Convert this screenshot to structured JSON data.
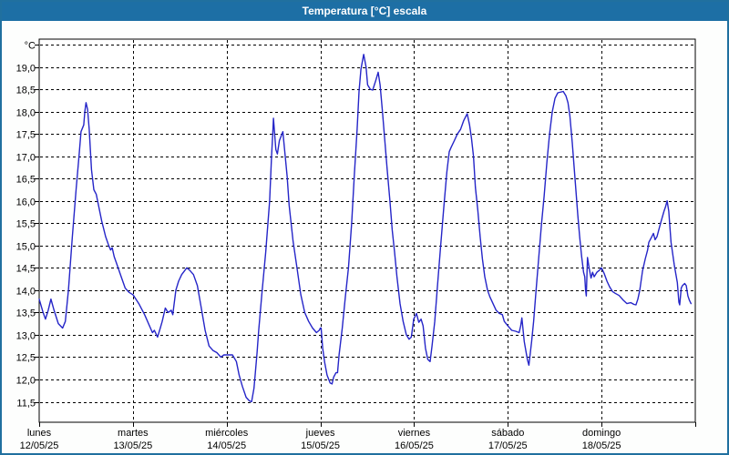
{
  "window": {
    "title": "Temperatura [°C] escala"
  },
  "colors": {
    "frame": "#20709f",
    "title_bar_bg": "#1d6fa5",
    "title_text": "#ffffff",
    "page_bg": "#fdfefd",
    "plot_bg": "#ffffff",
    "grid": "#000000",
    "line": "#2525c8"
  },
  "chart_data": {
    "type": "line",
    "title": "Temperatura [°C] escala",
    "xlabel": "",
    "ylabel": "°C",
    "grid": "dashed",
    "legend": "none",
    "x_range_hours": [
      0,
      168
    ],
    "y_axis": {
      "unit_label": "°C",
      "min_labeled": 11.5,
      "max_labeled": 19.0,
      "step": 0.5,
      "ticks": [
        {
          "value": 19.5,
          "label": "°C"
        },
        {
          "value": 19.0,
          "label": "19,0"
        },
        {
          "value": 18.5,
          "label": "18,5"
        },
        {
          "value": 18.0,
          "label": "18,0"
        },
        {
          "value": 17.5,
          "label": "17,5"
        },
        {
          "value": 17.0,
          "label": "17,0"
        },
        {
          "value": 16.5,
          "label": "16,5"
        },
        {
          "value": 16.0,
          "label": "16,0"
        },
        {
          "value": 15.5,
          "label": "15,5"
        },
        {
          "value": 15.0,
          "label": "15,0"
        },
        {
          "value": 14.5,
          "label": "14,5"
        },
        {
          "value": 14.0,
          "label": "14,0"
        },
        {
          "value": 13.5,
          "label": "13,5"
        },
        {
          "value": 13.0,
          "label": "13,0"
        },
        {
          "value": 12.5,
          "label": "12,5"
        },
        {
          "value": 12.0,
          "label": "12,0"
        },
        {
          "value": 11.5,
          "label": "11,5"
        }
      ]
    },
    "x_days": [
      {
        "name": "lunes",
        "date": "12/05/25"
      },
      {
        "name": "martes",
        "date": "13/05/25"
      },
      {
        "name": "miércoles",
        "date": "14/05/25"
      },
      {
        "name": "jueves",
        "date": "15/05/25"
      },
      {
        "name": "viernes",
        "date": "16/05/25"
      },
      {
        "name": "sábado",
        "date": "17/05/25"
      },
      {
        "name": "domingo",
        "date": "18/05/25"
      }
    ],
    "series": [
      {
        "name": "Temperatura",
        "color": "#2525c8",
        "points": [
          [
            0,
            13.8
          ],
          [
            1,
            13.5
          ],
          [
            1.6,
            13.35
          ],
          [
            2.3,
            13.55
          ],
          [
            3,
            13.8
          ],
          [
            3.8,
            13.55
          ],
          [
            4.9,
            13.25
          ],
          [
            6,
            13.15
          ],
          [
            6.7,
            13.3
          ],
          [
            7.5,
            14.0
          ],
          [
            8.5,
            15.2
          ],
          [
            9.5,
            16.3
          ],
          [
            10.2,
            17.0
          ],
          [
            10.7,
            17.55
          ],
          [
            11.4,
            17.7
          ],
          [
            11.7,
            18.0
          ],
          [
            12,
            18.2
          ],
          [
            12.4,
            18.05
          ],
          [
            12.8,
            17.6
          ],
          [
            13.4,
            16.7
          ],
          [
            14,
            16.25
          ],
          [
            14.6,
            16.15
          ],
          [
            15.2,
            15.9
          ],
          [
            16,
            15.55
          ],
          [
            17,
            15.2
          ],
          [
            17.8,
            15.0
          ],
          [
            18.3,
            14.9
          ],
          [
            18.7,
            14.95
          ],
          [
            19.2,
            14.75
          ],
          [
            19.8,
            14.6
          ],
          [
            21,
            14.3
          ],
          [
            22,
            14.05
          ],
          [
            23,
            13.95
          ],
          [
            24,
            13.9
          ],
          [
            25.5,
            13.7
          ],
          [
            27,
            13.45
          ],
          [
            28.5,
            13.15
          ],
          [
            29,
            13.05
          ],
          [
            29.5,
            13.1
          ],
          [
            30.3,
            12.95
          ],
          [
            31,
            13.15
          ],
          [
            31.5,
            13.3
          ],
          [
            32.3,
            13.6
          ],
          [
            33,
            13.5
          ],
          [
            33.8,
            13.55
          ],
          [
            34.2,
            13.45
          ],
          [
            35,
            14.0
          ],
          [
            35.7,
            14.2
          ],
          [
            36.5,
            14.35
          ],
          [
            37.8,
            14.5
          ],
          [
            38.5,
            14.45
          ],
          [
            39.5,
            14.35
          ],
          [
            40.5,
            14.1
          ],
          [
            41.5,
            13.6
          ],
          [
            42.5,
            13.1
          ],
          [
            43.5,
            12.75
          ],
          [
            44.5,
            12.65
          ],
          [
            45.5,
            12.6
          ],
          [
            46.5,
            12.5
          ],
          [
            47.3,
            12.55
          ],
          [
            48,
            12.55
          ],
          [
            49.5,
            12.55
          ],
          [
            50.5,
            12.4
          ],
          [
            51.2,
            12.1
          ],
          [
            52,
            11.85
          ],
          [
            53,
            11.6
          ],
          [
            53.8,
            11.52
          ],
          [
            54.4,
            11.5
          ],
          [
            55,
            11.8
          ],
          [
            55.3,
            12.1
          ],
          [
            55.8,
            12.6
          ],
          [
            56.2,
            13.1
          ],
          [
            57,
            13.9
          ],
          [
            58,
            14.85
          ],
          [
            59,
            16.0
          ],
          [
            59.5,
            17.0
          ],
          [
            59.8,
            17.5
          ],
          [
            60,
            17.85
          ],
          [
            60.6,
            17.15
          ],
          [
            61,
            17.05
          ],
          [
            61.5,
            17.35
          ],
          [
            62.4,
            17.55
          ],
          [
            63,
            17.0
          ],
          [
            63.5,
            16.55
          ],
          [
            64,
            15.9
          ],
          [
            65,
            15.1
          ],
          [
            66,
            14.5
          ],
          [
            67,
            13.9
          ],
          [
            68,
            13.5
          ],
          [
            69,
            13.3
          ],
          [
            70,
            13.15
          ],
          [
            71,
            13.05
          ],
          [
            71.7,
            13.1
          ],
          [
            72,
            13.15
          ],
          [
            72.2,
            13.15
          ],
          [
            72.6,
            12.7
          ],
          [
            73.1,
            12.38
          ],
          [
            73.7,
            12.1
          ],
          [
            74.5,
            11.92
          ],
          [
            75,
            11.9
          ],
          [
            75.4,
            12.05
          ],
          [
            76,
            12.15
          ],
          [
            76.4,
            12.15
          ],
          [
            76.8,
            12.55
          ],
          [
            77.6,
            13.15
          ],
          [
            78.4,
            13.85
          ],
          [
            79.2,
            14.5
          ],
          [
            80,
            15.5
          ],
          [
            80.7,
            16.6
          ],
          [
            81.4,
            17.6
          ],
          [
            81.9,
            18.45
          ],
          [
            82.4,
            18.95
          ],
          [
            83.1,
            19.28
          ],
          [
            83.7,
            19.0
          ],
          [
            84.1,
            18.6
          ],
          [
            84.8,
            18.5
          ],
          [
            85.4,
            18.48
          ],
          [
            86.2,
            18.7
          ],
          [
            86.8,
            18.88
          ],
          [
            87.3,
            18.6
          ],
          [
            87.9,
            18.0
          ],
          [
            88.5,
            17.35
          ],
          [
            89.1,
            16.7
          ],
          [
            89.8,
            16.0
          ],
          [
            90.4,
            15.35
          ],
          [
            91,
            14.85
          ],
          [
            91.6,
            14.3
          ],
          [
            92.4,
            13.7
          ],
          [
            93.2,
            13.3
          ],
          [
            94,
            13.0
          ],
          [
            94.7,
            12.9
          ],
          [
            95.3,
            12.95
          ],
          [
            95.9,
            13.35
          ],
          [
            96.6,
            13.48
          ],
          [
            97.2,
            13.28
          ],
          [
            97.8,
            13.35
          ],
          [
            98.3,
            13.2
          ],
          [
            98.9,
            12.7
          ],
          [
            99.5,
            12.45
          ],
          [
            100.1,
            12.4
          ],
          [
            100.6,
            12.75
          ],
          [
            101.3,
            13.3
          ],
          [
            102,
            14.1
          ],
          [
            102.8,
            15.0
          ],
          [
            103.6,
            15.85
          ],
          [
            104.4,
            16.65
          ],
          [
            105,
            17.1
          ],
          [
            105.5,
            17.2
          ],
          [
            106.3,
            17.35
          ],
          [
            107.1,
            17.5
          ],
          [
            107.9,
            17.6
          ],
          [
            108.7,
            17.8
          ],
          [
            109.3,
            17.9
          ],
          [
            109.6,
            17.95
          ],
          [
            110.2,
            17.7
          ],
          [
            110.7,
            17.4
          ],
          [
            111.2,
            17.0
          ],
          [
            111.7,
            16.3
          ],
          [
            112.3,
            15.8
          ],
          [
            112.9,
            15.2
          ],
          [
            113.5,
            14.7
          ],
          [
            114.1,
            14.3
          ],
          [
            114.8,
            14.0
          ],
          [
            115.4,
            13.85
          ],
          [
            116.2,
            13.7
          ],
          [
            117,
            13.55
          ],
          [
            117.8,
            13.48
          ],
          [
            118.6,
            13.45
          ],
          [
            119.1,
            13.3
          ],
          [
            120,
            13.2
          ],
          [
            121,
            13.1
          ],
          [
            122,
            13.08
          ],
          [
            122.9,
            13.05
          ],
          [
            123.3,
            13.2
          ],
          [
            123.6,
            13.38
          ],
          [
            124.2,
            12.85
          ],
          [
            125,
            12.45
          ],
          [
            125.4,
            12.32
          ],
          [
            126.1,
            12.85
          ],
          [
            126.6,
            13.3
          ],
          [
            127.2,
            13.95
          ],
          [
            127.9,
            14.7
          ],
          [
            128.6,
            15.45
          ],
          [
            129.3,
            16.1
          ],
          [
            130,
            16.85
          ],
          [
            130.7,
            17.5
          ],
          [
            131.4,
            18.0
          ],
          [
            132.1,
            18.3
          ],
          [
            132.8,
            18.42
          ],
          [
            134.2,
            18.45
          ],
          [
            134.9,
            18.35
          ],
          [
            135.4,
            18.2
          ],
          [
            135.9,
            17.9
          ],
          [
            136.5,
            17.3
          ],
          [
            137.2,
            16.5
          ],
          [
            137.9,
            15.7
          ],
          [
            138.4,
            15.2
          ],
          [
            138.9,
            14.75
          ],
          [
            139.4,
            14.4
          ],
          [
            139.7,
            14.3
          ],
          [
            139.9,
            14.0
          ],
          [
            140.1,
            13.87
          ],
          [
            140.4,
            14.73
          ],
          [
            140.9,
            14.45
          ],
          [
            141.3,
            14.27
          ],
          [
            141.7,
            14.4
          ],
          [
            142.1,
            14.3
          ],
          [
            142.8,
            14.4
          ],
          [
            143.5,
            14.45
          ],
          [
            144,
            14.5
          ],
          [
            144.7,
            14.37
          ],
          [
            145.4,
            14.2
          ],
          [
            146.1,
            14.07
          ],
          [
            146.8,
            13.97
          ],
          [
            147.5,
            13.93
          ],
          [
            148.5,
            13.88
          ],
          [
            149.5,
            13.78
          ],
          [
            150.5,
            13.7
          ],
          [
            151.5,
            13.72
          ],
          [
            152.3,
            13.68
          ],
          [
            152.8,
            13.67
          ],
          [
            153.3,
            13.8
          ],
          [
            153.8,
            14.0
          ],
          [
            154.5,
            14.43
          ],
          [
            155.2,
            14.7
          ],
          [
            155.8,
            14.9
          ],
          [
            156.1,
            15.07
          ],
          [
            156.7,
            15.17
          ],
          [
            157.3,
            15.27
          ],
          [
            157.7,
            15.13
          ],
          [
            158.2,
            15.2
          ],
          [
            159.1,
            15.5
          ],
          [
            160,
            15.77
          ],
          [
            160.4,
            15.87
          ],
          [
            160.8,
            16.0
          ],
          [
            161.2,
            15.77
          ],
          [
            161.5,
            15.43
          ],
          [
            161.8,
            15.07
          ],
          [
            162.2,
            14.83
          ],
          [
            162.6,
            14.57
          ],
          [
            163,
            14.37
          ],
          [
            163.4,
            14.17
          ],
          [
            163.8,
            13.73
          ],
          [
            164,
            13.67
          ],
          [
            164.4,
            14.05
          ],
          [
            164.7,
            14.1
          ],
          [
            165.3,
            14.15
          ],
          [
            165.7,
            14.1
          ],
          [
            166.1,
            13.87
          ],
          [
            166.5,
            13.77
          ],
          [
            166.9,
            13.7
          ]
        ]
      }
    ]
  }
}
